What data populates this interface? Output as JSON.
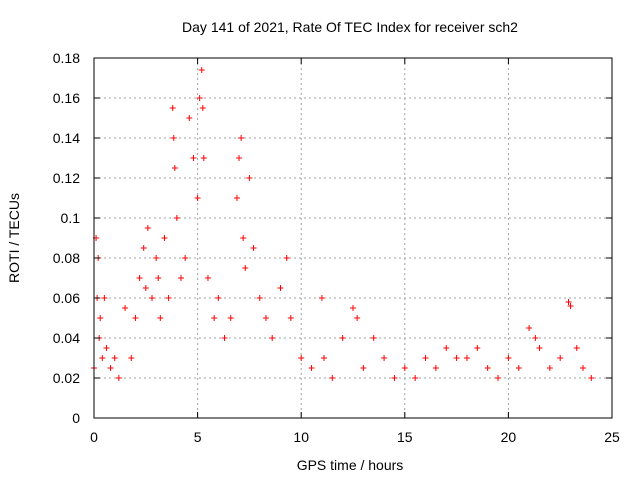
{
  "chart_data": {
    "type": "scatter",
    "title": "Day 141 of 2021, Rate Of TEC Index for receiver sch2",
    "xlabel": "GPS time / hours",
    "ylabel": "ROTI / TECUs",
    "xlim": [
      0,
      25
    ],
    "ylim": [
      0,
      0.18
    ],
    "x_ticks": [
      0,
      5,
      10,
      15,
      20,
      25
    ],
    "x_tick_labels": [
      "0",
      "5",
      "10",
      "15",
      "20",
      "25"
    ],
    "y_ticks": [
      0,
      0.02,
      0.04,
      0.06,
      0.08,
      0.1,
      0.12,
      0.14,
      0.16,
      0.18
    ],
    "y_tick_labels": [
      "0",
      "0.02",
      "0.04",
      "0.06",
      "0.08",
      "0.1",
      "0.12",
      "0.14",
      "0.16",
      "0.18"
    ],
    "grid": true,
    "marker": "+",
    "color": "#ff0000",
    "series": [
      {
        "x": [
          0.0,
          0.1,
          0.15,
          0.2,
          0.25,
          0.3,
          0.4,
          0.5,
          0.6,
          0.8,
          1.0,
          1.2,
          1.5,
          1.8,
          2.0,
          2.2,
          2.4,
          2.5,
          2.6,
          2.8,
          3.0,
          3.1,
          3.2,
          3.4,
          3.6,
          3.8,
          3.85,
          3.9,
          4.0,
          4.2,
          4.4,
          4.6,
          4.8,
          5.0,
          5.1,
          5.2,
          5.25,
          5.3,
          5.5,
          5.8,
          6.0,
          6.3,
          6.6,
          6.9,
          7.0,
          7.1,
          7.2,
          7.3,
          7.5,
          7.7,
          8.0,
          8.3,
          8.6,
          9.0,
          9.3,
          9.5,
          10.0,
          10.5,
          11.0,
          11.1,
          11.5,
          12.0,
          12.5,
          12.7,
          13.0,
          13.5,
          14.0,
          14.5,
          15.0,
          15.5,
          16.0,
          16.5,
          17.0,
          17.5,
          18.0,
          18.5,
          19.0,
          19.5,
          20.0,
          20.5,
          21.0,
          21.3,
          21.5,
          22.0,
          22.5,
          22.9,
          23.0,
          23.3,
          23.6,
          24.0
        ],
        "y": [
          0.025,
          0.09,
          0.06,
          0.08,
          0.04,
          0.05,
          0.03,
          0.06,
          0.035,
          0.025,
          0.03,
          0.02,
          0.055,
          0.03,
          0.05,
          0.07,
          0.085,
          0.065,
          0.095,
          0.06,
          0.08,
          0.07,
          0.05,
          0.09,
          0.06,
          0.155,
          0.14,
          0.125,
          0.1,
          0.07,
          0.08,
          0.15,
          0.13,
          0.11,
          0.16,
          0.174,
          0.155,
          0.13,
          0.07,
          0.05,
          0.06,
          0.04,
          0.05,
          0.11,
          0.13,
          0.14,
          0.09,
          0.075,
          0.12,
          0.085,
          0.06,
          0.05,
          0.04,
          0.065,
          0.08,
          0.05,
          0.03,
          0.025,
          0.06,
          0.03,
          0.02,
          0.04,
          0.055,
          0.05,
          0.025,
          0.04,
          0.03,
          0.02,
          0.025,
          0.02,
          0.03,
          0.025,
          0.035,
          0.03,
          0.03,
          0.035,
          0.025,
          0.02,
          0.03,
          0.025,
          0.045,
          0.04,
          0.035,
          0.025,
          0.03,
          0.058,
          0.056,
          0.035,
          0.025,
          0.02
        ]
      }
    ]
  }
}
